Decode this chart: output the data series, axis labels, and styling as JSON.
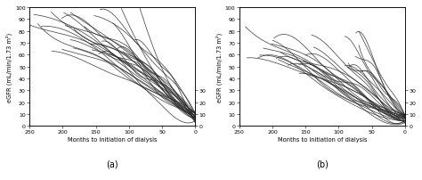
{
  "ylabel": "eGFR (mL/min/1.73 m²)",
  "xlabel": "Months to initiation of dialysis",
  "xlim": [
    250,
    0
  ],
  "ylim": [
    0,
    100
  ],
  "xticks": [
    250,
    200,
    150,
    100,
    50,
    0
  ],
  "yticks_left": [
    0,
    10,
    20,
    30,
    40,
    50,
    60,
    70,
    80,
    90,
    100
  ],
  "yticks_right": [
    0,
    10,
    20,
    30
  ],
  "label_a": "(a)",
  "label_b": "(b)",
  "linewidth": 0.55,
  "line_color": "#2a2a2a",
  "n_lines_a": 28,
  "n_lines_b": 30,
  "seed_a": 42,
  "seed_b": 99
}
